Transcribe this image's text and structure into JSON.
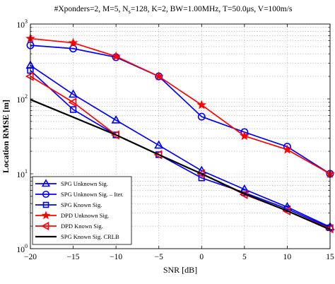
{
  "chart_data": {
    "type": "line",
    "title": "#Xponders=2, M=5, N_s=128, K=2, BW=1.00MHz, T=50.0μs, V=100m/s",
    "title_parts": {
      "prefix": "#Xponders=2, M=5, N",
      "subscript": "s",
      "suffix": "=128, K=2, BW=1.00MHz, T=50.0μs, V=100m/s"
    },
    "xlabel": "SNR [dB]",
    "ylabel": "Location RMSE [m]",
    "xlim": [
      -20,
      15
    ],
    "ylim": [
      1,
      1000
    ],
    "yscale": "log",
    "grid": true,
    "legend_position": "bottom-left",
    "x_ticks": [
      -20,
      -15,
      -10,
      -5,
      0,
      5,
      10,
      15
    ],
    "x_tick_labels": [
      "−20",
      "−15",
      "−10",
      "−5",
      "0",
      "5",
      "10",
      "15"
    ],
    "y_ticks": [
      {
        "value": 1,
        "base": "10",
        "exp": "0"
      },
      {
        "value": 10,
        "base": "10",
        "exp": "1"
      },
      {
        "value": 100,
        "base": "10",
        "exp": "2"
      },
      {
        "value": 1000,
        "base": "10",
        "exp": "3"
      }
    ],
    "x": [
      -20,
      -15,
      -10,
      -5,
      0,
      5,
      10,
      15
    ],
    "series": [
      {
        "name": "SPG Unknown Sig.",
        "color": "#0000ff",
        "marker": "triangle-up",
        "values": [
          280,
          115,
          52,
          24,
          11,
          6.2,
          3.6,
          1.95
        ]
      },
      {
        "name": "SPG Unknown Sig. – Iter.",
        "color": "#0000ff",
        "marker": "circle",
        "values": [
          520,
          470,
          360,
          200,
          58,
          36,
          23,
          10
        ]
      },
      {
        "name": "SPG Known Sig.",
        "color": "#0000ff",
        "marker": "square",
        "values": [
          240,
          72,
          33,
          18,
          8.8,
          5.6,
          3.4,
          1.9
        ]
      },
      {
        "name": "DPD Unknown Sig.",
        "color": "#ff0000",
        "marker": "star",
        "values": [
          640,
          560,
          370,
          200,
          83,
          32,
          21,
          10
        ]
      },
      {
        "name": "DPD Known Sig.",
        "color": "#ff0000",
        "marker": "triangle-left",
        "values": [
          200,
          90,
          33,
          18,
          10,
          5.3,
          3.2,
          1.85
        ]
      },
      {
        "name": "SPG Known Sig. CRLB",
        "color": "#000000",
        "marker": "none",
        "values": [
          98,
          57,
          33,
          18,
          10,
          5.4,
          3.2,
          1.8
        ]
      }
    ]
  }
}
